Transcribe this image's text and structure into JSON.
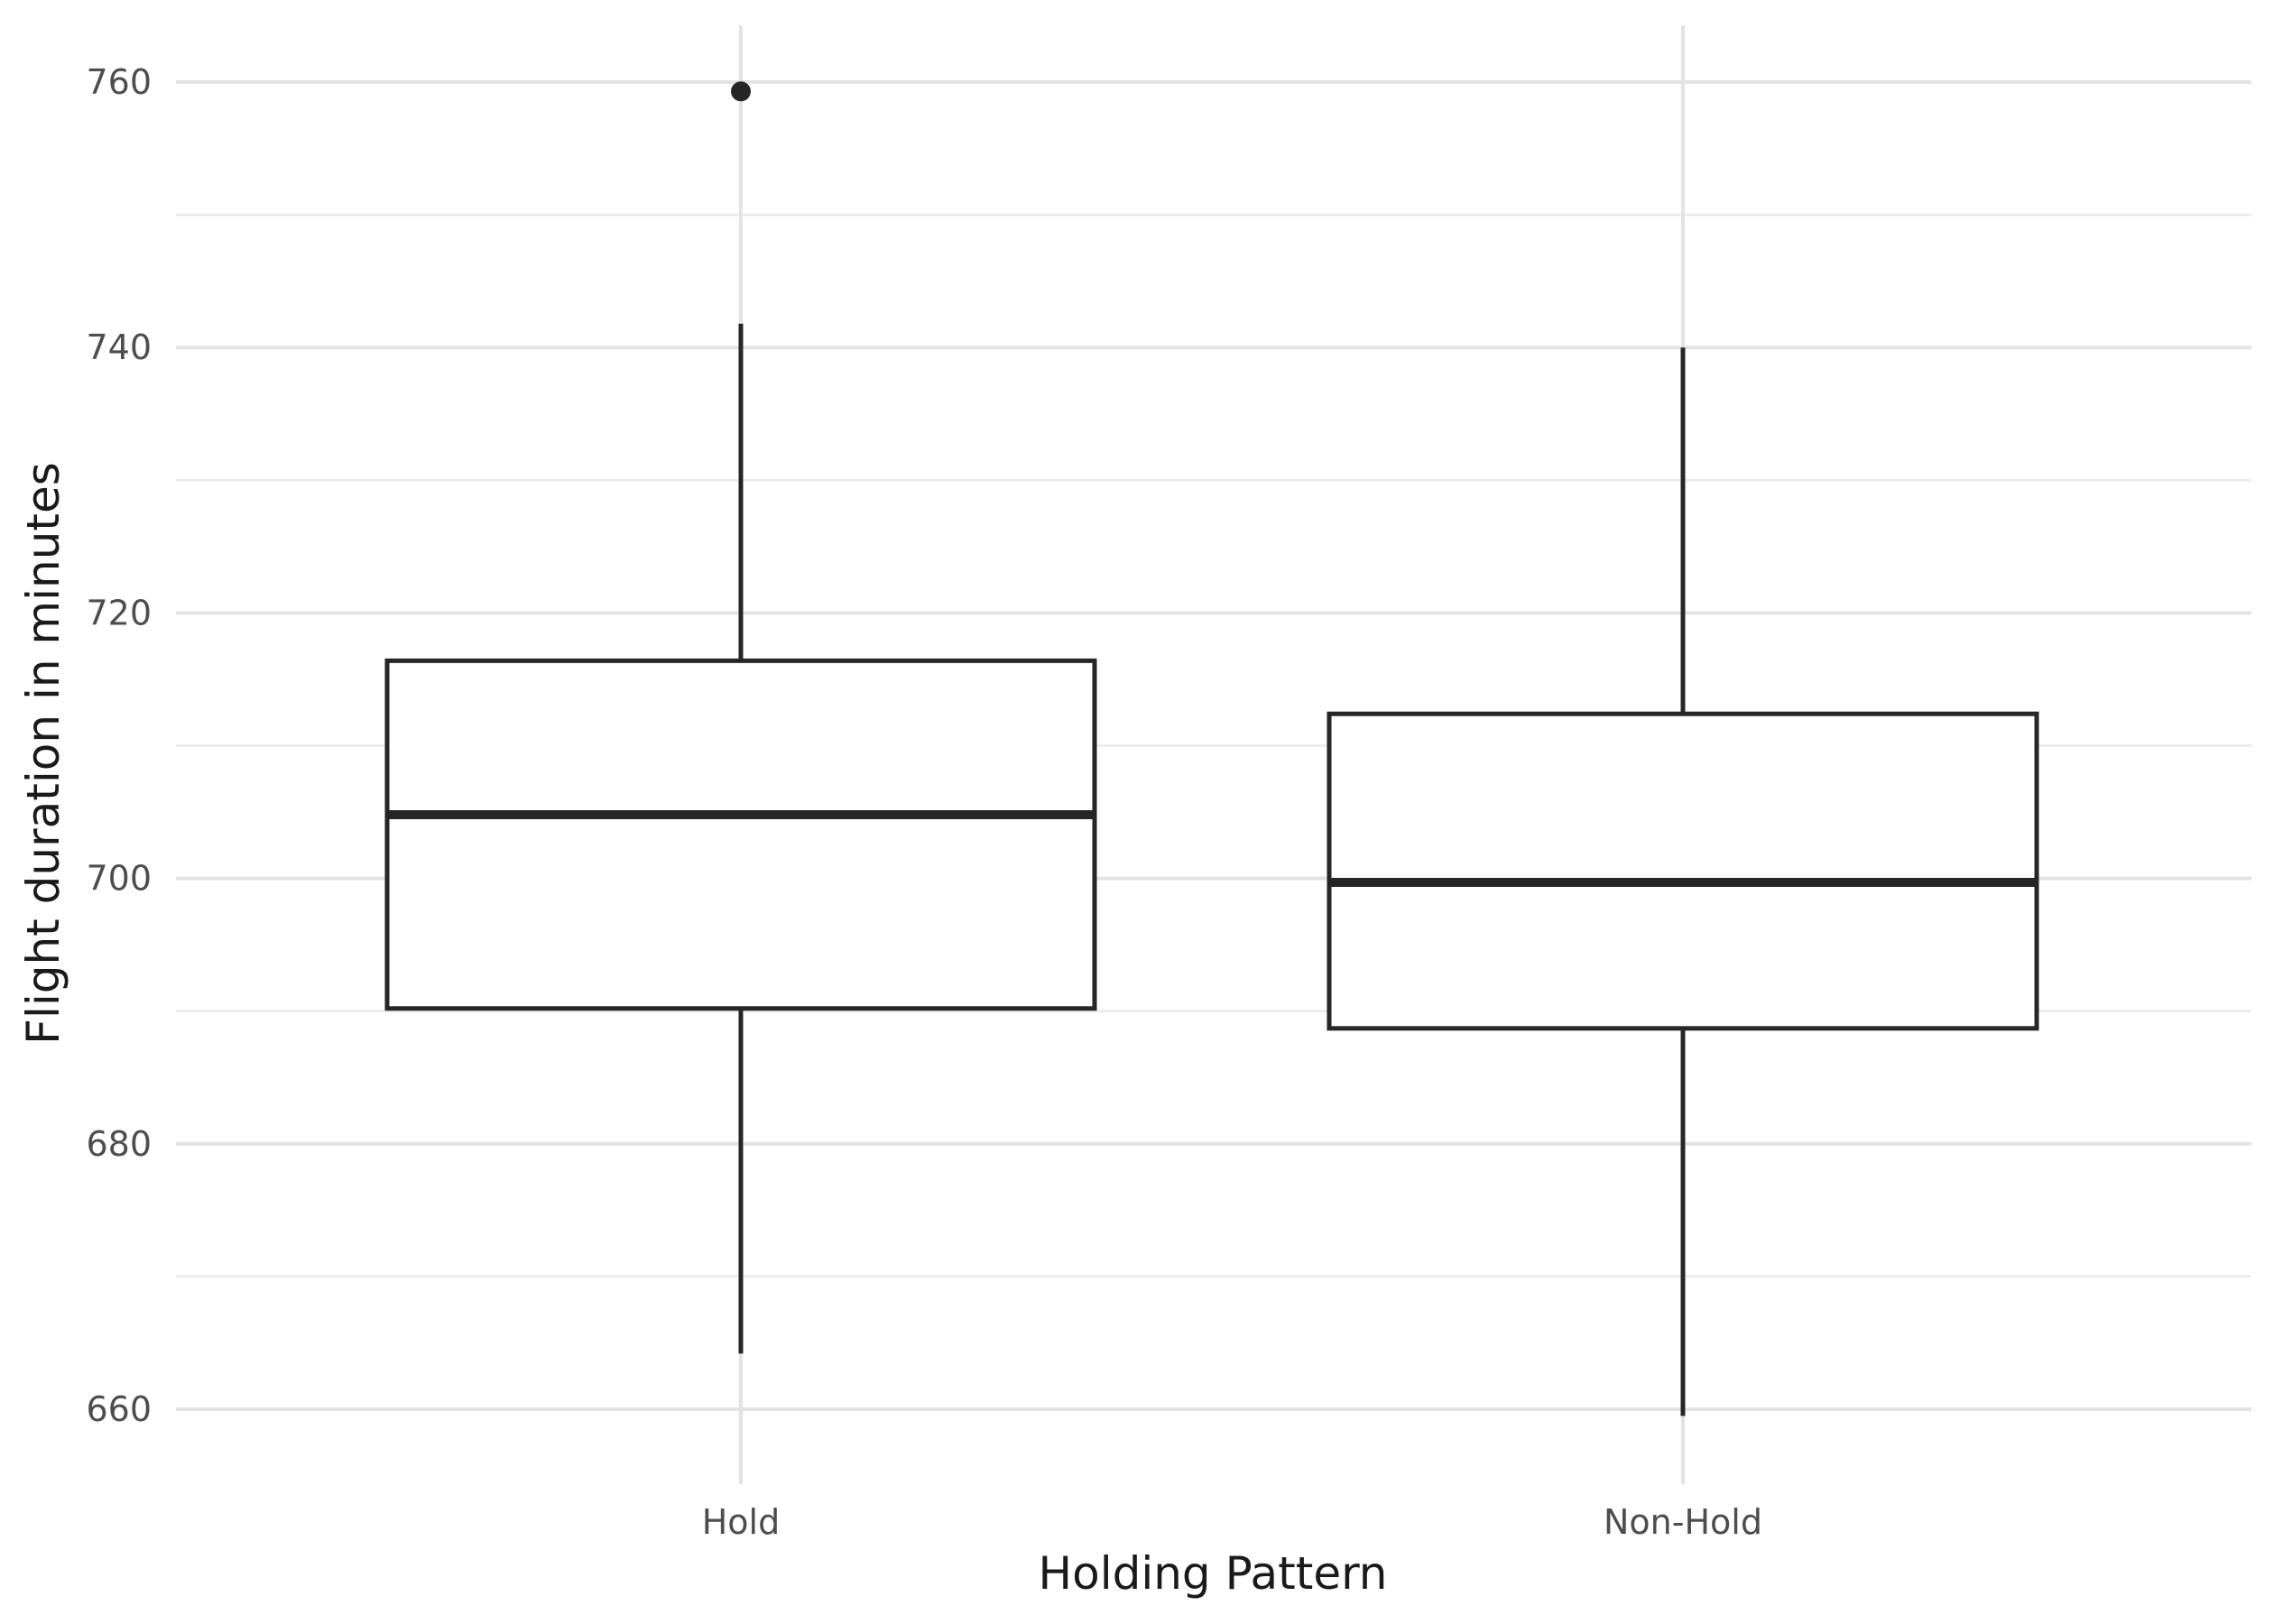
{
  "chart_data": {
    "type": "box",
    "title": "",
    "xlabel": "Holding Pattern",
    "ylabel": "Flight duration in minutes",
    "categories": [
      "Hold",
      "Non-Hold"
    ],
    "ylim": [
      655.5,
      763.5
    ],
    "y_ticks": [
      660,
      680,
      700,
      720,
      740,
      760
    ],
    "y_tick_labels": [
      "660",
      "680",
      "700",
      "720",
      "740",
      "760"
    ],
    "grid": true,
    "boxes": [
      {
        "category": "Hold",
        "whisker_low": 664.2,
        "q1": 690.2,
        "median": 704.8,
        "q3": 716.4,
        "whisker_high": 741.8,
        "outliers": [
          759.3
        ]
      },
      {
        "category": "Non-Hold",
        "whisker_low": 659.5,
        "q1": 688.7,
        "median": 699.7,
        "q3": 712.4,
        "whisker_high": 740.0,
        "outliers": []
      }
    ],
    "colors": {
      "box_stroke": "#262626",
      "box_fill": "#ffffff",
      "grid": "#e3e3e3",
      "tick_text": "#4d4d4d",
      "axis_title": "#1a1a1a"
    }
  }
}
